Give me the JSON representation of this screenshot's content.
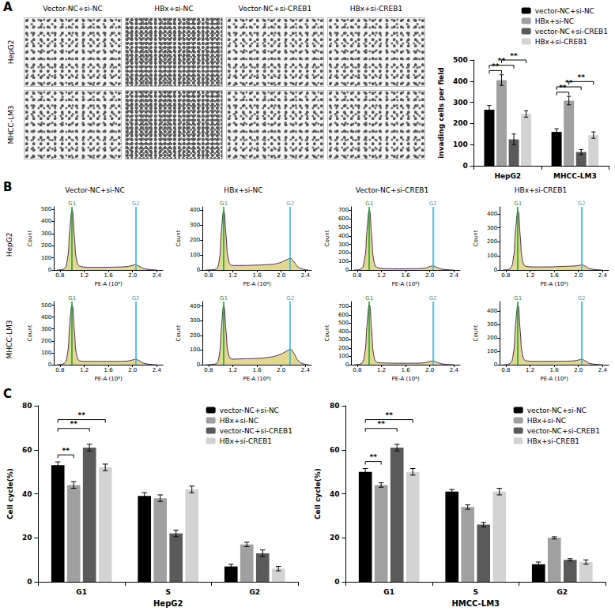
{
  "panel_labels": [
    "A",
    "B",
    "C"
  ],
  "invasion_images": {
    "columns": [
      "Vector-NC+si-NC",
      "HBx+si-NC",
      "Vector-NC+si-CREB1",
      "HBx+si-CREB1"
    ],
    "rows": [
      "HepG2",
      "MHCC-LM3"
    ]
  },
  "flow_panels": {
    "columns": [
      "Vector-NC+si-NC",
      "HBx+si-NC",
      "Vector-NC+si-CREB1",
      "HBx+si-CREB1"
    ],
    "rows": [
      "HepG2",
      "MHCC-LM3"
    ]
  },
  "chart_data": [
    {
      "type": "bar",
      "y_label": "invading cells per field",
      "categories": [
        "HepG2",
        "MHCC-LM3"
      ],
      "series": [
        {
          "name": "vector-NC+si-NC",
          "color": "#000000",
          "values": [
            265,
            160
          ],
          "errors": [
            20,
            15
          ]
        },
        {
          "name": "HBx+si-NC",
          "color": "#a0a0a0",
          "values": [
            405,
            308
          ],
          "errors": [
            25,
            20
          ]
        },
        {
          "name": "vector-NC+si-CREB1",
          "color": "#5a5a5a",
          "values": [
            125,
            65
          ],
          "errors": [
            25,
            12
          ]
        },
        {
          "name": "HBx+si-CREB1",
          "color": "#d3d3d3",
          "values": [
            245,
            145
          ],
          "errors": [
            15,
            15
          ]
        }
      ],
      "ylim": [
        0,
        500
      ],
      "yticks": [
        0,
        100,
        200,
        300,
        400,
        500
      ],
      "legend": "top-right",
      "grid": false,
      "comparisons": [
        {
          "category": "HepG2",
          "from": "vector-NC+si-NC",
          "to": "HBx+si-NC",
          "label": "**"
        },
        {
          "category": "HepG2",
          "from": "vector-NC+si-NC",
          "to": "vector-NC+si-CREB1",
          "label": "**"
        },
        {
          "category": "HepG2",
          "from": "HBx+si-NC",
          "to": "HBx+si-CREB1",
          "label": "**"
        },
        {
          "category": "MHCC-LM3",
          "from": "vector-NC+si-NC",
          "to": "HBx+si-NC",
          "label": "**"
        },
        {
          "category": "MHCC-LM3",
          "from": "vector-NC+si-NC",
          "to": "vector-NC+si-CREB1",
          "label": "**"
        },
        {
          "category": "MHCC-LM3",
          "from": "HBx+si-NC",
          "to": "HBx+si-CREB1",
          "label": "**"
        }
      ]
    },
    {
      "type": "line",
      "x_label": "PE-A (10⁶)",
      "y_label": "Count",
      "color": "#d8cc6a",
      "x": [
        0.75,
        0.85,
        0.92,
        0.96,
        1.0,
        1.04,
        1.08,
        1.15,
        1.3,
        1.5,
        1.7,
        1.9,
        2.0,
        2.05,
        2.1,
        2.2,
        2.4
      ],
      "values": [
        0,
        5,
        80,
        320,
        490,
        260,
        70,
        28,
        22,
        22,
        24,
        28,
        38,
        44,
        34,
        10,
        0
      ],
      "xlim": [
        0.7,
        2.5
      ],
      "xticks": [
        0.8,
        1.2,
        1.6,
        {
          "value": 2,
          "label": "2.0"
        },
        2.4
      ],
      "ylim": [
        0,
        520
      ],
      "yticks": [
        0,
        100,
        200,
        300,
        400,
        500
      ],
      "gates": [
        {
          "label": "G1",
          "value": 1.0,
          "color": "#1a9e2a"
        },
        {
          "label": "G2",
          "value": 2.05,
          "color": "#27b5e0"
        }
      ]
    },
    {
      "type": "line",
      "x_label": "PE-A (10⁶)",
      "y_label": "Count",
      "color": "#d8cc6a",
      "x": [
        0.75,
        0.9,
        0.97,
        1.01,
        1.05,
        1.09,
        1.13,
        1.2,
        1.35,
        1.55,
        1.75,
        1.95,
        2.1,
        2.15,
        2.2,
        2.3,
        2.45
      ],
      "values": [
        0,
        4,
        50,
        250,
        390,
        220,
        65,
        30,
        30,
        32,
        35,
        45,
        70,
        78,
        60,
        15,
        0
      ],
      "xlim": [
        0.7,
        2.5
      ],
      "xticks": [
        0.8,
        1.2,
        1.6,
        {
          "value": 2,
          "label": "2.0"
        },
        2.4
      ],
      "ylim": [
        0,
        420
      ],
      "yticks": [
        0,
        100,
        200,
        300,
        400
      ],
      "gates": [
        {
          "label": "G1",
          "value": 1.05,
          "color": "#1a9e2a"
        },
        {
          "label": "G2",
          "value": 2.15,
          "color": "#27b5e0"
        }
      ]
    },
    {
      "type": "line",
      "x_label": "PE-A (10⁶)",
      "y_label": "Count",
      "color": "#d8cc6a",
      "x": [
        0.75,
        0.85,
        0.92,
        0.96,
        1.0,
        1.04,
        1.08,
        1.15,
        1.3,
        1.5,
        1.7,
        1.9,
        2.0,
        2.05,
        2.1,
        2.2,
        2.4
      ],
      "values": [
        0,
        8,
        120,
        450,
        700,
        380,
        90,
        25,
        15,
        14,
        15,
        20,
        40,
        48,
        36,
        10,
        0
      ],
      "xlim": [
        0.7,
        2.5
      ],
      "xticks": [
        0.8,
        1.2,
        1.6,
        {
          "value": 2,
          "label": "2.0"
        },
        2.4
      ],
      "ylim": [
        0,
        740
      ],
      "yticks": [
        0,
        100,
        200,
        300,
        400,
        500,
        600,
        700
      ],
      "gates": [
        {
          "label": "G1",
          "value": 1.0,
          "color": "#1a9e2a"
        },
        {
          "label": "G2",
          "value": 2.05,
          "color": "#27b5e0"
        }
      ]
    },
    {
      "type": "line",
      "x_label": "PE-A (10⁶)",
      "y_label": "Count",
      "color": "#d8cc6a",
      "x": [
        0.75,
        0.85,
        0.92,
        0.96,
        1.0,
        1.04,
        1.08,
        1.15,
        1.3,
        1.5,
        1.7,
        1.9,
        2.0,
        2.05,
        2.1,
        2.2,
        2.4
      ],
      "values": [
        0,
        5,
        70,
        280,
        420,
        230,
        60,
        25,
        22,
        22,
        25,
        28,
        32,
        36,
        30,
        8,
        0
      ],
      "xlim": [
        0.7,
        2.5
      ],
      "xticks": [
        0.8,
        1.2,
        1.6,
        {
          "value": 2,
          "label": "2.0"
        },
        2.4
      ],
      "ylim": [
        0,
        450
      ],
      "yticks": [
        0,
        100,
        200,
        300,
        400
      ],
      "gates": [
        {
          "label": "G1",
          "value": 1.0,
          "color": "#1a9e2a"
        },
        {
          "label": "G2",
          "value": 2.05,
          "color": "#27b5e0"
        }
      ]
    },
    {
      "type": "line",
      "x_label": "PE-A (10⁶)",
      "y_label": "Count",
      "color": "#d8cc6a",
      "x": [
        0.75,
        0.85,
        0.92,
        0.96,
        1.0,
        1.04,
        1.08,
        1.15,
        1.3,
        1.5,
        1.7,
        1.9,
        2.0,
        2.05,
        2.1,
        2.2,
        2.4
      ],
      "values": [
        0,
        6,
        80,
        330,
        500,
        270,
        70,
        30,
        28,
        28,
        28,
        30,
        40,
        45,
        36,
        10,
        0
      ],
      "xlim": [
        0.7,
        2.5
      ],
      "xticks": [
        0.8,
        1.2,
        1.6,
        {
          "value": 2,
          "label": "2.0"
        },
        2.4
      ],
      "ylim": [
        0,
        530
      ],
      "yticks": [
        0,
        100,
        200,
        300,
        400,
        500
      ],
      "gates": [
        {
          "label": "G1",
          "value": 1.0,
          "color": "#1a9e2a"
        },
        {
          "label": "G2",
          "value": 2.05,
          "color": "#27b5e0"
        }
      ]
    },
    {
      "type": "line",
      "x_label": "PE-A (10⁶)",
      "y_label": "Count",
      "color": "#d8cc6a",
      "x": [
        0.75,
        0.9,
        0.97,
        1.01,
        1.05,
        1.09,
        1.13,
        1.2,
        1.35,
        1.55,
        1.75,
        1.95,
        2.1,
        2.15,
        2.2,
        2.3,
        2.45
      ],
      "values": [
        0,
        4,
        50,
        240,
        400,
        220,
        70,
        38,
        40,
        42,
        48,
        65,
        95,
        105,
        85,
        20,
        0
      ],
      "xlim": [
        0.7,
        2.5
      ],
      "xticks": [
        0.8,
        1.2,
        1.6,
        {
          "value": 2,
          "label": "2.0"
        },
        2.4
      ],
      "ylim": [
        0,
        430
      ],
      "yticks": [
        0,
        100,
        200,
        300,
        400
      ],
      "gates": [
        {
          "label": "G1",
          "value": 1.05,
          "color": "#1a9e2a"
        },
        {
          "label": "G2",
          "value": 2.15,
          "color": "#27b5e0"
        }
      ]
    },
    {
      "type": "line",
      "x_label": "PE-A (10⁶)",
      "y_label": "Count",
      "color": "#d8cc6a",
      "x": [
        0.75,
        0.85,
        0.92,
        0.96,
        1.0,
        1.04,
        1.08,
        1.15,
        1.3,
        1.5,
        1.7,
        1.9,
        2.0,
        2.05,
        2.1,
        2.2,
        2.4
      ],
      "values": [
        0,
        8,
        120,
        460,
        720,
        390,
        90,
        25,
        20,
        18,
        18,
        22,
        40,
        45,
        35,
        10,
        0
      ],
      "xlim": [
        0.7,
        2.5
      ],
      "xticks": [
        0.8,
        1.2,
        1.6,
        {
          "value": 2,
          "label": "2.0"
        },
        2.4
      ],
      "ylim": [
        0,
        760
      ],
      "yticks": [
        0,
        100,
        200,
        300,
        400,
        500,
        600,
        700
      ],
      "gates": [
        {
          "label": "G1",
          "value": 1.0,
          "color": "#1a9e2a"
        },
        {
          "label": "G2",
          "value": 2.05,
          "color": "#27b5e0"
        }
      ]
    },
    {
      "type": "line",
      "x_label": "PE-A (10⁶)",
      "y_label": "Count",
      "color": "#d8cc6a",
      "x": [
        0.75,
        0.85,
        0.92,
        0.96,
        1.0,
        1.04,
        1.08,
        1.15,
        1.3,
        1.5,
        1.7,
        1.9,
        2.0,
        2.05,
        2.1,
        2.2,
        2.4
      ],
      "values": [
        0,
        5,
        70,
        290,
        440,
        240,
        65,
        28,
        25,
        25,
        26,
        28,
        35,
        40,
        32,
        8,
        0
      ],
      "xlim": [
        0.7,
        2.5
      ],
      "xticks": [
        0.8,
        1.2,
        1.6,
        {
          "value": 2,
          "label": "2.0"
        },
        2.4
      ],
      "ylim": [
        0,
        470
      ],
      "yticks": [
        0,
        100,
        200,
        300,
        400
      ],
      "gates": [
        {
          "label": "G1",
          "value": 1.0,
          "color": "#1a9e2a"
        },
        {
          "label": "G2",
          "value": 2.05,
          "color": "#27b5e0"
        }
      ]
    },
    {
      "type": "bar",
      "x_label": "HepG2",
      "y_label": "Cell cycle(%)",
      "categories": [
        "G1",
        "S",
        "G2"
      ],
      "series": [
        {
          "name": "vector-NC+si-NC",
          "color": "#000000",
          "values": [
            53,
            39,
            7
          ],
          "errors": [
            1.5,
            1.5,
            1
          ]
        },
        {
          "name": "HBx+si-NC",
          "color": "#a0a0a0",
          "values": [
            44,
            38,
            17
          ],
          "errors": [
            1.5,
            1.5,
            1
          ]
        },
        {
          "name": "vector-NC+si-CREB1",
          "color": "#5a5a5a",
          "values": [
            61,
            22,
            13
          ],
          "errors": [
            1.5,
            1.5,
            1.5
          ]
        },
        {
          "name": "HBx+si-CREB1",
          "color": "#d3d3d3",
          "values": [
            52,
            42,
            6
          ],
          "errors": [
            1.5,
            1.5,
            1
          ]
        }
      ],
      "ylim": [
        0,
        80
      ],
      "yticks": [
        0,
        20,
        40,
        60,
        80
      ],
      "legend": "top-right",
      "grid": false,
      "comparisons": [
        {
          "category": "G1",
          "from": "vector-NC+si-NC",
          "to": "HBx+si-NC",
          "label": "**"
        },
        {
          "category": "G1",
          "from": "vector-NC+si-NC",
          "to": "vector-NC+si-CREB1",
          "label": "**"
        },
        {
          "category": "G1",
          "from": "vector-NC+si-NC",
          "to": "HBx+si-CREB1",
          "label": "**"
        }
      ]
    },
    {
      "type": "bar",
      "x_label": "HMCC-LM3",
      "y_label": "Cell cycle(%)",
      "categories": [
        "G1",
        "S",
        "G2"
      ],
      "series": [
        {
          "name": "vector-NC+si-NC",
          "color": "#000000",
          "values": [
            50,
            41,
            8
          ],
          "errors": [
            1.5,
            1,
            1
          ]
        },
        {
          "name": "HBx+si-NC",
          "color": "#a0a0a0",
          "values": [
            44,
            34,
            20
          ],
          "errors": [
            1,
            1,
            0.5
          ]
        },
        {
          "name": "vector-NC+si-CREB1",
          "color": "#5a5a5a",
          "values": [
            61,
            26,
            10
          ],
          "errors": [
            1.5,
            1,
            0.5
          ]
        },
        {
          "name": "HBx+si-CREB1",
          "color": "#d3d3d3",
          "values": [
            50,
            41,
            9
          ],
          "errors": [
            1.5,
            1.5,
            1
          ]
        }
      ],
      "ylim": [
        0,
        80
      ],
      "yticks": [
        0,
        20,
        40,
        60,
        80
      ],
      "legend": "top-right",
      "grid": false,
      "comparisons": [
        {
          "category": "G1",
          "from": "vector-NC+si-NC",
          "to": "HBx+si-NC",
          "label": "**"
        },
        {
          "category": "G1",
          "from": "vector-NC+si-NC",
          "to": "vector-NC+si-CREB1",
          "label": "**"
        },
        {
          "category": "G1",
          "from": "vector-NC+si-NC",
          "to": "HBx+si-CREB1",
          "label": "**"
        }
      ]
    }
  ]
}
